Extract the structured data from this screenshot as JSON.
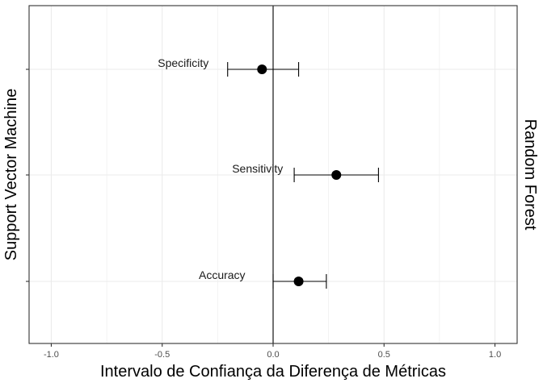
{
  "chart_data": {
    "type": "scatter",
    "xlabel": "Intervalo de Confiança da Diferença de Métricas",
    "ylabel": "Support Vector Machine",
    "right_label": "Random Forest",
    "xlim": [
      -1.1,
      1.1
    ],
    "x_ticks": [
      -1.0,
      -0.5,
      0.0,
      0.5,
      1.0
    ],
    "x_tick_labels": [
      "-1.0",
      "-0.5",
      "0.0",
      "0.5",
      "1.0"
    ],
    "reference_line_x": 0,
    "grid": true,
    "points": [
      {
        "label": "Specificity",
        "estimate": -0.05,
        "lower": -0.205,
        "upper": 0.115
      },
      {
        "label": "Sensitivity",
        "estimate": 0.285,
        "lower": 0.095,
        "upper": 0.475
      },
      {
        "label": "Accuracy",
        "estimate": 0.115,
        "lower": 0.0,
        "upper": 0.24
      }
    ],
    "colors": {
      "point": "#000000",
      "grid": "#ebebeb",
      "border": "#333333",
      "text": "#000000"
    }
  }
}
